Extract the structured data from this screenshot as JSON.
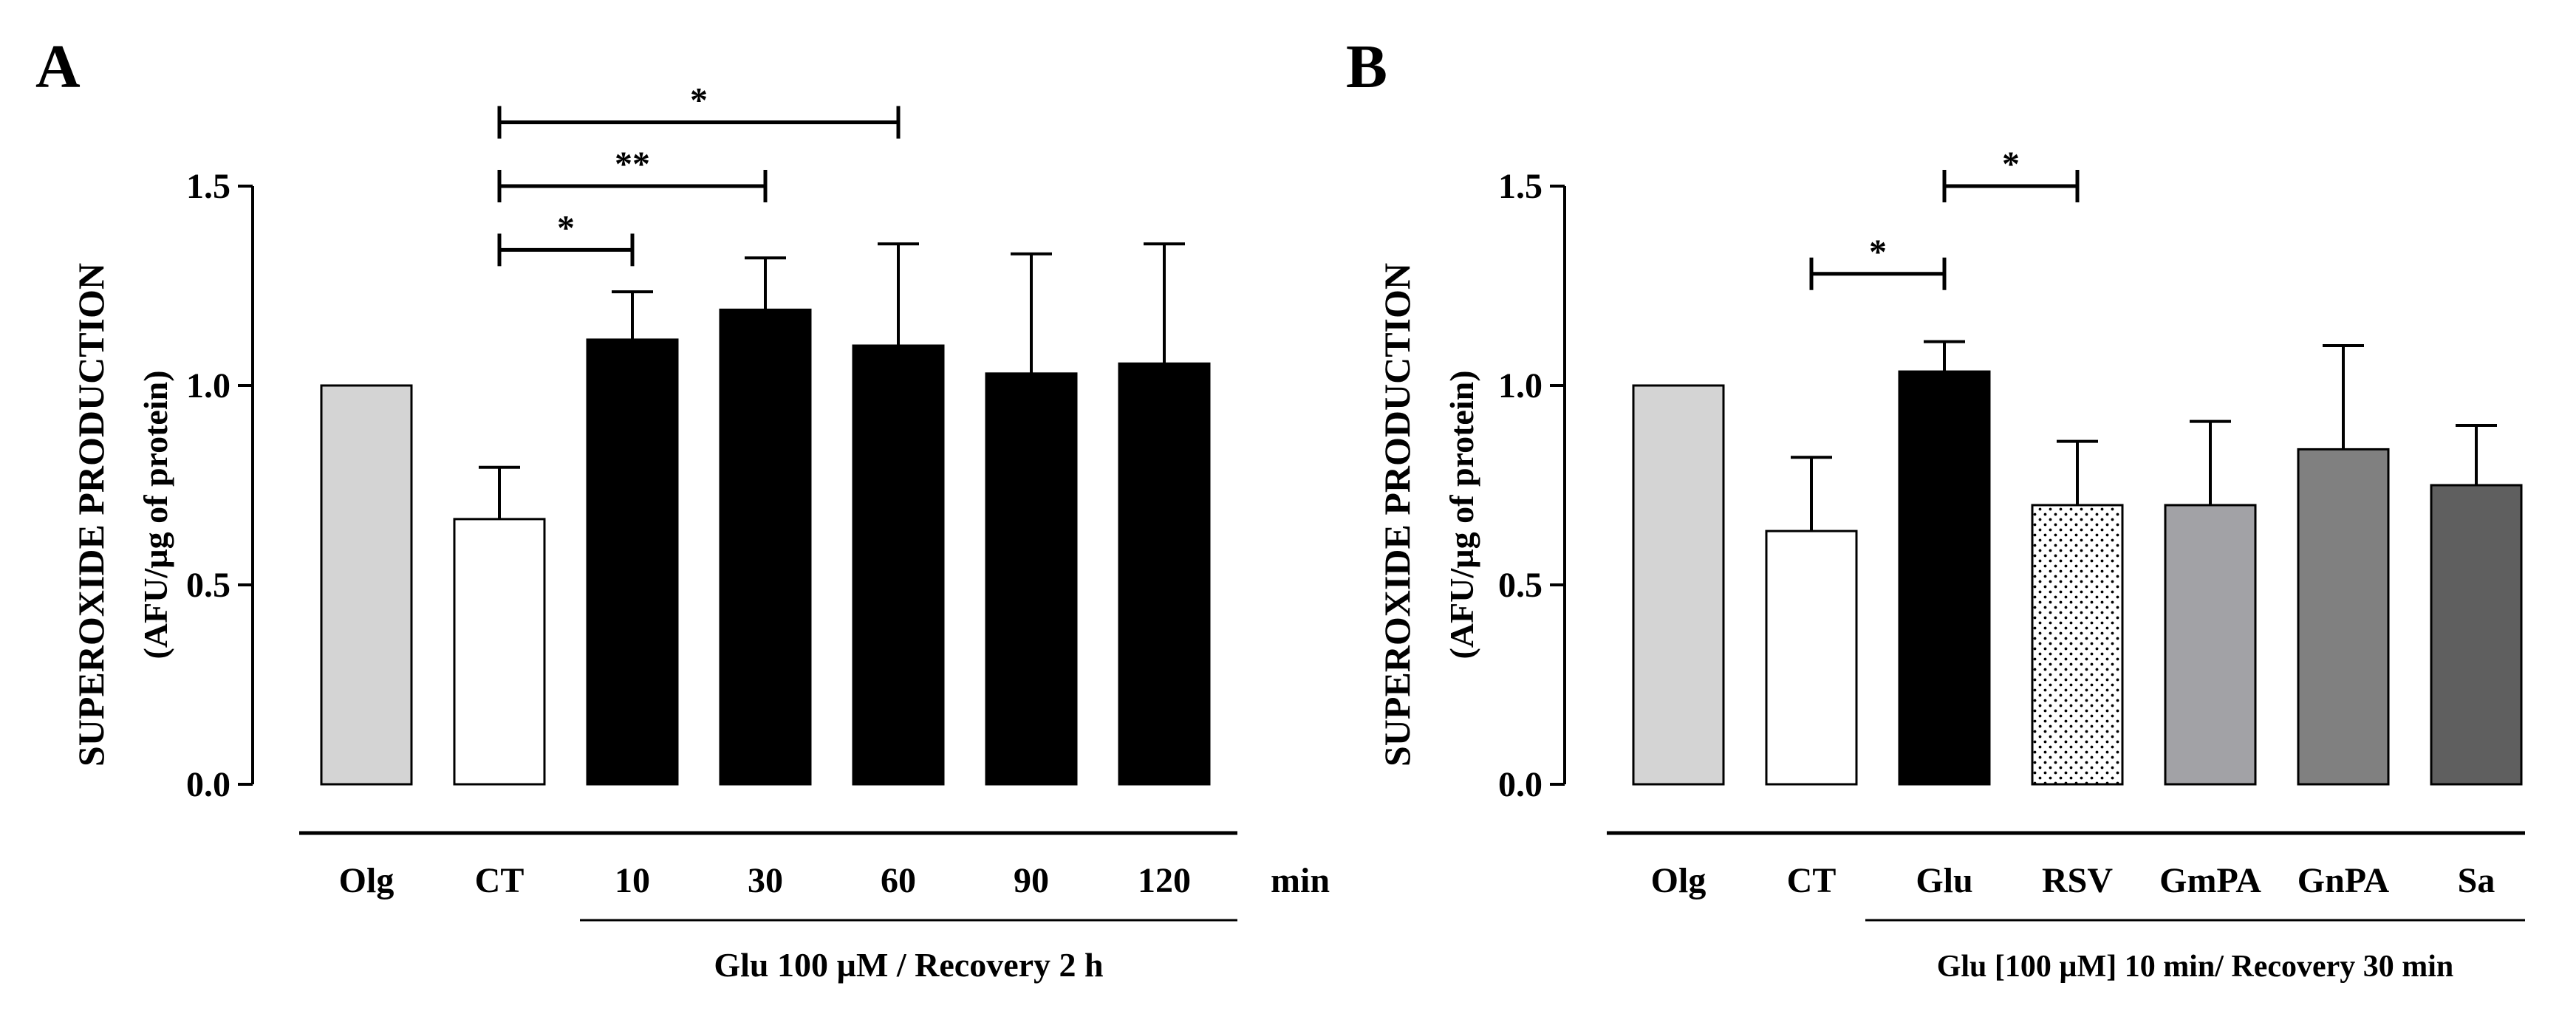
{
  "colors": {
    "olg": "#d4d4d4",
    "ct": "#ffffff",
    "glu": "#000000",
    "gmpa": "#a2a2a6",
    "gnpa": "#808080",
    "sa": "#5f5f5f",
    "axis": "#000000"
  },
  "chart_data": [
    {
      "panel": "A",
      "type": "bar",
      "ylabel_line1": "SUPEROXIDE PRODUCTION",
      "ylabel_line2": "(AFU/µg of protein)",
      "ylim": [
        0,
        1.5
      ],
      "yticks": [
        "0.0",
        "0.5",
        "1.0",
        "1.5"
      ],
      "categories": [
        "Olg",
        "CT",
        "10",
        "30",
        "60",
        "90",
        "120"
      ],
      "values": [
        1.0,
        0.665,
        1.115,
        1.19,
        1.1,
        1.03,
        1.055
      ],
      "errors": [
        0,
        0.13,
        0.12,
        0.13,
        0.255,
        0.3,
        0.3
      ],
      "fills": [
        "olg",
        "ct",
        "glu",
        "glu",
        "glu",
        "glu",
        "glu"
      ],
      "unit_label": "min",
      "group_label": "Glu 100 µM  / Recovery 2 h",
      "group_range": [
        2,
        6
      ],
      "significance": [
        {
          "from": 1,
          "to": 2,
          "y": 1.34,
          "label": "*"
        },
        {
          "from": 1,
          "to": 3,
          "y": 1.5,
          "label": "**"
        },
        {
          "from": 1,
          "to": 4,
          "y": 1.66,
          "label": "*"
        }
      ]
    },
    {
      "panel": "B",
      "type": "bar",
      "ylabel_line1": "SUPEROXIDE PRODUCTION",
      "ylabel_line2": "(AFU/µg of protein)",
      "ylim": [
        0,
        1.5
      ],
      "yticks": [
        "0.0",
        "0.5",
        "1.0",
        "1.5"
      ],
      "categories": [
        "Olg",
        "CT",
        "Glu",
        "RSV",
        "GmPA",
        "GnPA",
        "Sa"
      ],
      "values": [
        1.0,
        0.635,
        1.035,
        0.7,
        0.7,
        0.84,
        0.75
      ],
      "errors": [
        0,
        0.185,
        0.075,
        0.16,
        0.21,
        0.26,
        0.15
      ],
      "fills": [
        "olg",
        "ct",
        "glu",
        "dots",
        "gmpa",
        "gnpa",
        "sa"
      ],
      "unit_label": "",
      "group_label": "Glu [100 µM] 10 min/ Recovery 30 min",
      "group_range": [
        2,
        6
      ],
      "significance": [
        {
          "from": 1,
          "to": 2,
          "y": 1.28,
          "label": "*"
        },
        {
          "from": 2,
          "to": 3,
          "y": 1.5,
          "label": "*"
        }
      ]
    }
  ]
}
